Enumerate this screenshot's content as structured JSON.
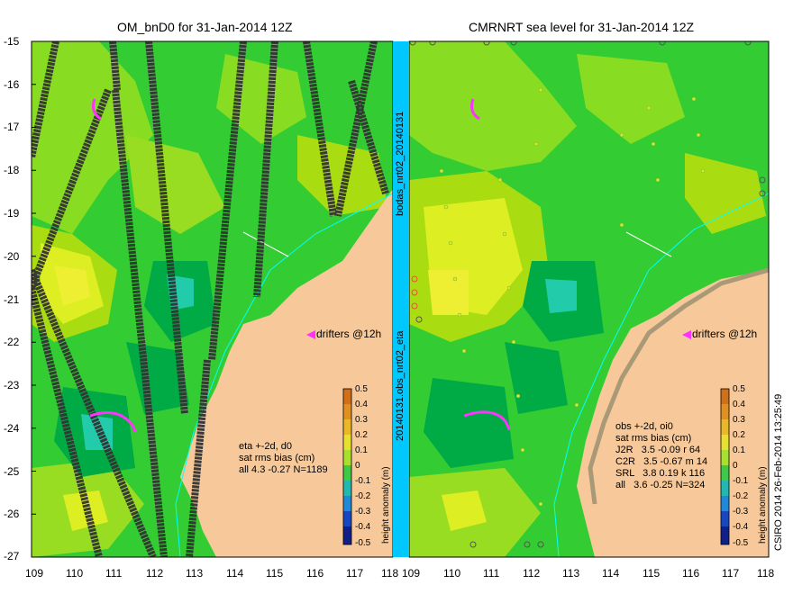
{
  "left_panel": {
    "title": "OM_bnD0 for 31-Jan-2014 12Z",
    "drifters_label": "drifters @12h",
    "stats_lines": [
      "eta +-2d, d0",
      "sat rms bias (cm)",
      "all 4.3 -0.27 N=1189"
    ]
  },
  "right_panel": {
    "title": "CMRNRT sea level  for 31-Jan-2014 12Z",
    "drifters_label": "drifters @12h",
    "stats_lines": [
      "obs +-2d, oi0",
      "sat rms bias (cm)",
      "J2R   3.5 -0.09 r 64",
      "C2R   3.5 -0.67 m 14",
      "SRL   3.8 0.19 k 116",
      "all   3.6 -0.25 N=324"
    ]
  },
  "center_label_top": "bodas_nrt02_20140131",
  "center_label_bottom": "20140131.obs_nrt02_eta",
  "side_credit": "CSIRO 2014   26-Feb-2014 13:25:49",
  "colorbar": {
    "label": "height anomaly (m)",
    "ticks": [
      "0.5",
      "0.4",
      "0.3",
      "0.2",
      "0.1",
      "0",
      "-0.1",
      "-0.2",
      "-0.3",
      "-0.4",
      "-0.5"
    ]
  },
  "axes": {
    "lat_ticks": [
      "-15",
      "-16",
      "-17",
      "-18",
      "-19",
      "-20",
      "-21",
      "-22",
      "-23",
      "-24",
      "-25",
      "-26",
      "-27"
    ],
    "lon_ticks_left": [
      "109",
      "110",
      "111",
      "112",
      "113",
      "114",
      "115",
      "116",
      "117",
      "118"
    ],
    "lon_ticks_right": [
      "109",
      "110",
      "111",
      "112",
      "113",
      "114",
      "115",
      "116",
      "117",
      "118"
    ],
    "lon_range": [
      109,
      118
    ],
    "lat_range": [
      -27,
      -15
    ]
  },
  "colors": {
    "ocean_base": "#33cc33",
    "ocean_light": "#99dd22",
    "ocean_yellow": "#ddee22",
    "ocean_dark": "#00aa44",
    "cyan_low": "#22ccaa",
    "land": "#f7c99a",
    "separator": "#00c8ff",
    "drifter": "#ff33ff",
    "coast_line": "#00ffff"
  }
}
